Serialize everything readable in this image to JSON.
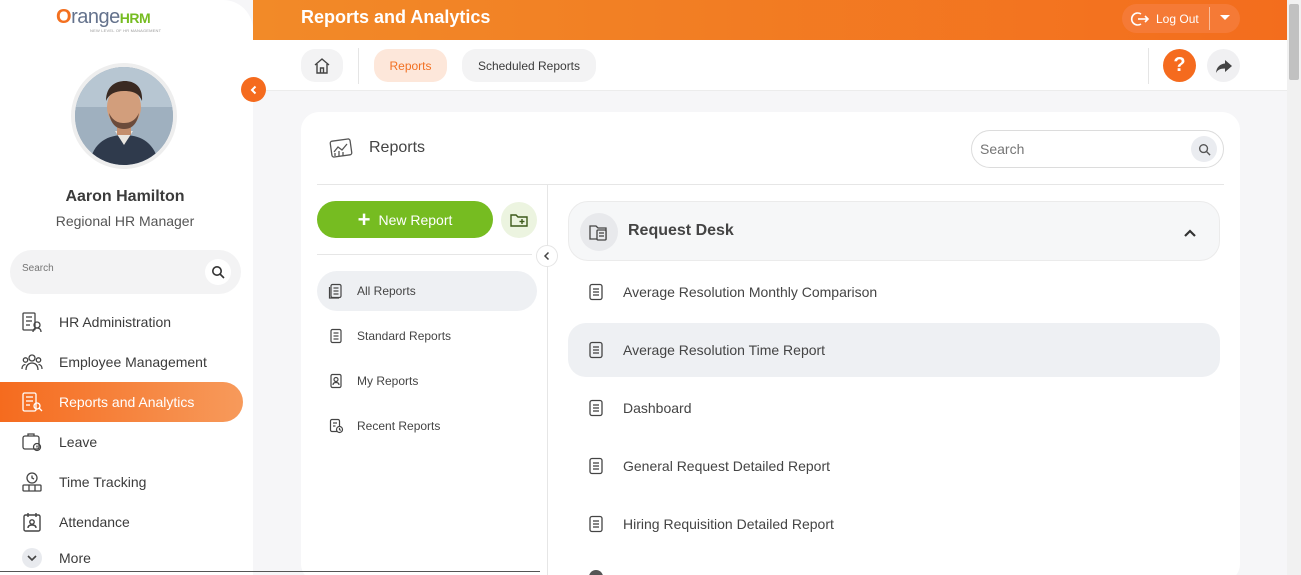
{
  "logo": {
    "o": "O",
    "range": "range",
    "hrm": "HRM",
    "tagline": "NEW LEVEL OF HR MANAGEMENT"
  },
  "user": {
    "name": "Aaron Hamilton",
    "role": "Regional HR Manager"
  },
  "sidebar": {
    "search_placeholder": "Search",
    "items": [
      {
        "label": "HR Administration",
        "icon": "hr-admin-icon"
      },
      {
        "label": "Employee Management",
        "icon": "employee-icon"
      },
      {
        "label": "Reports and Analytics",
        "icon": "reports-icon",
        "active": true
      },
      {
        "label": "Leave",
        "icon": "leave-icon"
      },
      {
        "label": "Time Tracking",
        "icon": "time-icon"
      },
      {
        "label": "Attendance",
        "icon": "attendance-icon"
      },
      {
        "label": "More",
        "icon": "chevron-down-icon"
      }
    ]
  },
  "topbar": {
    "title": "Reports and Analytics",
    "logout_label": "Log Out"
  },
  "subbar": {
    "tabs": [
      {
        "label": "Reports",
        "active": true
      },
      {
        "label": "Scheduled Reports"
      }
    ],
    "help_label": "?"
  },
  "card": {
    "title": "Reports",
    "search_placeholder": "Search",
    "new_report_label": "New Report",
    "left_nav": [
      {
        "label": "All Reports",
        "active": true
      },
      {
        "label": "Standard Reports"
      },
      {
        "label": "My Reports"
      },
      {
        "label": "Recent Reports"
      }
    ],
    "group": {
      "title": "Request Desk",
      "reports": [
        "Average Resolution Monthly Comparison",
        "Average Resolution Time Report",
        "Dashboard",
        "General Request Detailed Report",
        "Hiring Requisition Detailed Report"
      ],
      "active_index": 1
    }
  },
  "colors": {
    "accent": "#f56b1e",
    "green": "#76bc21",
    "topbar_start": "#f28a28",
    "topbar_end": "#f36d1d"
  }
}
